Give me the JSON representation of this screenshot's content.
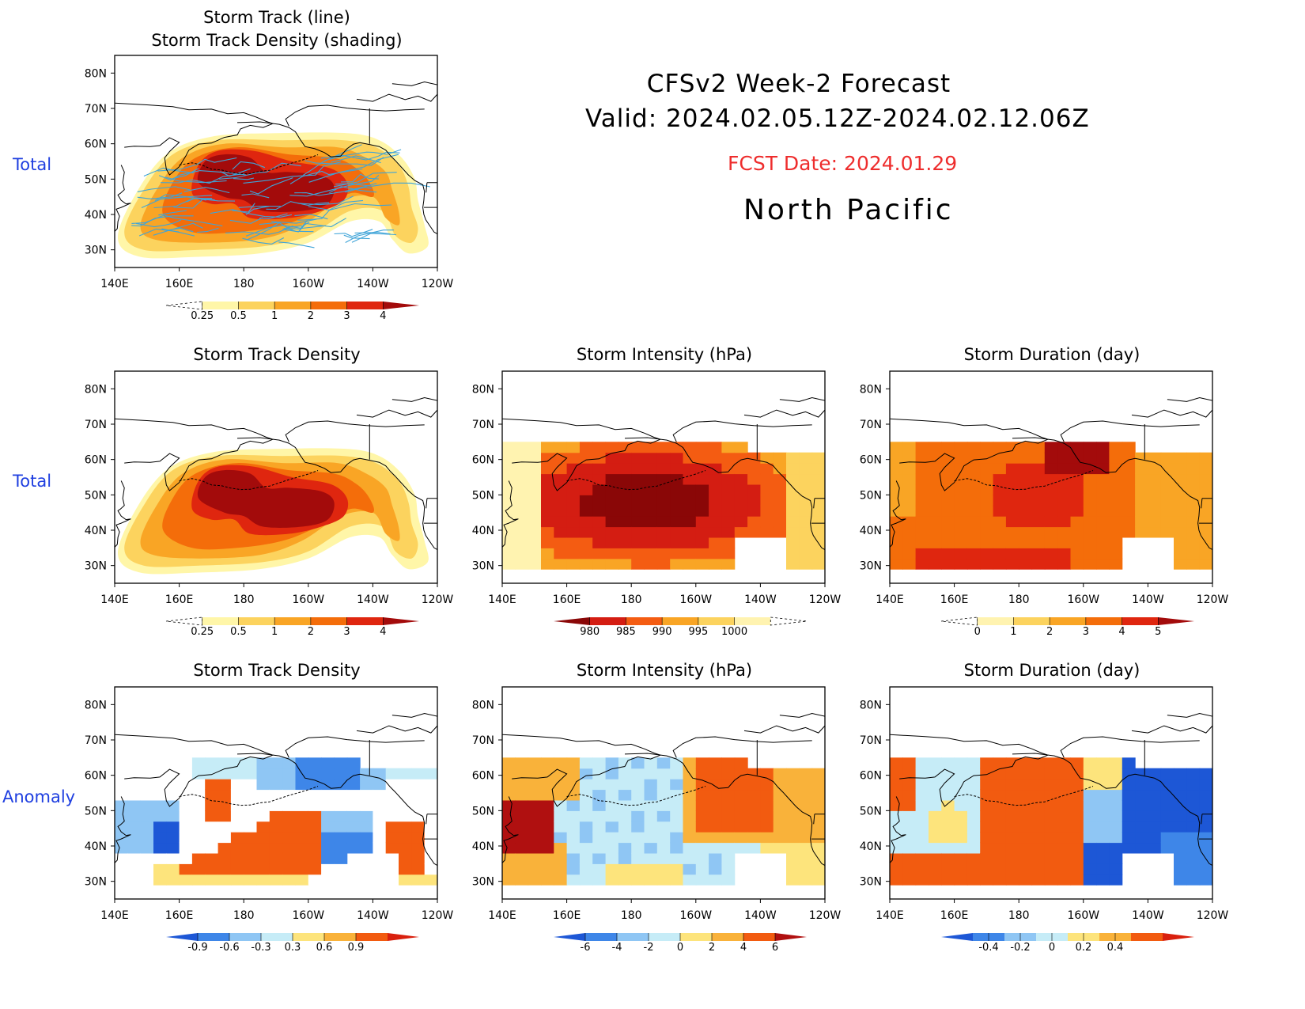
{
  "header": {
    "line1": "CFSv2 Week-2 Forecast",
    "line2": "Valid: 2024.02.05.12Z-2024.02.12.06Z",
    "fcst": "FCST Date: 2024.01.29",
    "region": "North Pacific"
  },
  "rows": {
    "total1": "Total",
    "total2": "Total",
    "anomaly": "Anomaly"
  },
  "axes": {
    "lat_labels": [
      "80N",
      "70N",
      "60N",
      "50N",
      "40N",
      "30N"
    ],
    "lon_labels": [
      "140E",
      "160E",
      "180",
      "160W",
      "140W",
      "120W"
    ]
  },
  "panels": {
    "p1": {
      "title1": "Storm Track (line)",
      "title2": "Storm Track Density (shading)"
    },
    "p2": {
      "title": "Storm Track Density"
    },
    "p3": {
      "title": "Storm Intensity (hPa)"
    },
    "p4": {
      "title": "Storm Duration (day)"
    },
    "p5": {
      "title": "Storm Track Density"
    },
    "p6": {
      "title": "Storm Intensity (hPa)"
    },
    "p7": {
      "title": "Storm Duration (day)"
    }
  },
  "colorbars": {
    "density": {
      "labels": [
        "0.25",
        "0.5",
        "1",
        "2",
        "3",
        "4"
      ],
      "colors": [
        "#fff6a8",
        "#fcd35e",
        "#f9a525",
        "#f46d0a",
        "#df260f",
        "#a30b0b"
      ]
    },
    "intensity": {
      "labels": [
        "980",
        "985",
        "990",
        "995",
        "1000"
      ],
      "colors": [
        "#8a0707",
        "#d41d12",
        "#f45c12",
        "#f9a525",
        "#fcd35e",
        "#fff3b0"
      ]
    },
    "duration": {
      "labels": [
        "0",
        "1",
        "2",
        "3",
        "4",
        "5"
      ],
      "colors": [
        "#fff3b0",
        "#fcd35e",
        "#f9a525",
        "#f46d0a",
        "#df260f",
        "#a30b0b"
      ]
    },
    "density_anom": {
      "labels": [
        "-0.9",
        "-0.6",
        "-0.3",
        "0.3",
        "0.6",
        "0.9"
      ],
      "colors": [
        "#1d57d6",
        "#3e86e8",
        "#8fc6f4",
        "#c6ecf7",
        "#ffffff",
        "#fde47c",
        "#f9b23a",
        "#f25b10",
        "#d9200e"
      ]
    },
    "intensity_anom": {
      "labels": [
        "-6",
        "-4",
        "-2",
        "0",
        "2",
        "4",
        "6"
      ],
      "colors": [
        "#1d57d6",
        "#3e86e8",
        "#8fc6f4",
        "#c6ecf7",
        "#fde47c",
        "#f9b23a",
        "#f25b10",
        "#b01010"
      ]
    },
    "duration_anom": {
      "labels": [
        "-0.4",
        "-0.2",
        "0",
        "0.2",
        "0.4"
      ],
      "colors": [
        "#1d57d6",
        "#3e86e8",
        "#8fc6f4",
        "#c6ecf7",
        "#fde47c",
        "#f9b23a",
        "#f25b10",
        "#d9200e"
      ]
    }
  },
  "colors": {
    "row_label": "#1f3fe0",
    "fcst_date": "#ee2d2d",
    "track_line": "#3fa4d8"
  }
}
